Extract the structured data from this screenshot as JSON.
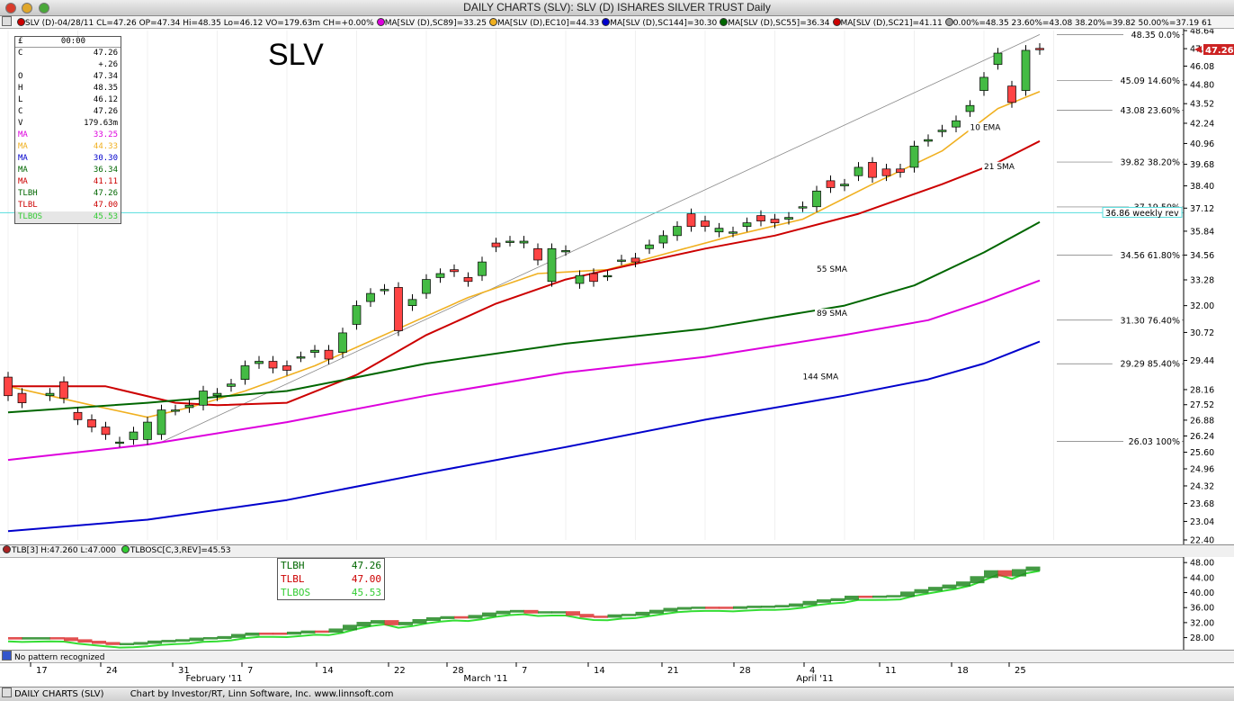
{
  "window": {
    "title": "DAILY CHARTS (SLV): SLV (D) ISHARES SILVER TRUST Daily"
  },
  "status_items": [
    {
      "text": "SLV (D)-04/28/11 CL=47.26 OP=47.34 Hi=48.35 Lo=46.12 VO=179.63m CH=+0.00%",
      "color": "#cc0000"
    },
    {
      "text": "MA[SLV (D),SC89]=33.25",
      "color": "#dd00dd"
    },
    {
      "text": "MA[SLV (D),EC10]=44.33",
      "color": "#f0b020"
    },
    {
      "text": "MA[SLV (D),SC144]=30.30",
      "color": "#0000cc"
    },
    {
      "text": "MA[SLV (D),SC55]=36.34",
      "color": "#006600"
    },
    {
      "text": "MA[SLV (D),SC21]=41.11",
      "color": "#cc0000"
    },
    {
      "text": "0.00%=48.35 23.60%=43.08 38.20%=39.82 50.00%=37.19 61",
      "color": "#999999"
    }
  ],
  "ticker_label": "SLV",
  "data_box": {
    "header_left": "£",
    "header_right": "00:00",
    "rows": [
      {
        "label": "C",
        "value": "47.26",
        "color": "#000000"
      },
      {
        "label": "",
        "value": "+.26",
        "color": "#000000"
      },
      {
        "label": "O",
        "value": "47.34",
        "color": "#000000"
      },
      {
        "label": "H",
        "value": "48.35",
        "color": "#000000"
      },
      {
        "label": "L",
        "value": "46.12",
        "color": "#000000"
      },
      {
        "label": "C",
        "value": "47.26",
        "color": "#000000"
      },
      {
        "label": "V",
        "value": "179.63m",
        "color": "#000000"
      },
      {
        "label": "MA",
        "value": "33.25",
        "color": "#dd00dd"
      },
      {
        "label": "MA",
        "value": "44.33",
        "color": "#f0b020"
      },
      {
        "label": "MA",
        "value": "30.30",
        "color": "#0000cc"
      },
      {
        "label": "MA",
        "value": "36.34",
        "color": "#006600"
      },
      {
        "label": "MA",
        "value": "41.11",
        "color": "#cc0000"
      },
      {
        "label": "TLBH",
        "value": "47.26",
        "color": "#006600"
      },
      {
        "label": "TLBL",
        "value": "47.00",
        "color": "#cc0000"
      },
      {
        "label": "TLBOS",
        "value": "45.53",
        "color": "#33cc33"
      }
    ]
  },
  "panel2": {
    "status_a": "TLB[3] H:47.260 L:47.000",
    "status_b": "TLBOSC[C,3,REV]=45.53",
    "box_rows": [
      {
        "label": "TLBH",
        "value": "47.26",
        "color": "#006600"
      },
      {
        "label": "TLBL",
        "value": "47.00",
        "color": "#cc0000"
      },
      {
        "label": "TLBOS",
        "value": "45.53",
        "color": "#33cc33"
      }
    ],
    "y_ticks": [
      "48.00",
      "44.00",
      "40.00",
      "36.00",
      "32.00",
      "28.00"
    ]
  },
  "pattern_text": "No pattern recognized",
  "bottom_left": "DAILY CHARTS (SLV)",
  "bottom_center": "Chart by Investor/RT, Linn Software, Inc. www.linnsoft.com",
  "chart_data": {
    "type": "candlestick",
    "title": "SLV",
    "y_axis": {
      "min": 22.4,
      "max": 48.64,
      "scale": "log",
      "ticks": [
        "48.64",
        "47.32",
        "46.08",
        "44.80",
        "43.52",
        "42.24",
        "40.96",
        "39.68",
        "38.40",
        "37.12",
        "35.84",
        "34.56",
        "33.28",
        "32.00",
        "30.72",
        "29.44",
        "28.16",
        "27.52",
        "26.88",
        "26.24",
        "25.60",
        "24.96",
        "24.32",
        "23.68",
        "23.04",
        "22.40"
      ]
    },
    "x_axis": {
      "date_labels": [
        "17",
        "24",
        "31",
        "February '11",
        "7",
        "14",
        "22",
        "28",
        "March '11",
        "7",
        "14",
        "21",
        "28",
        "April '11",
        "4",
        "11",
        "18",
        "25"
      ]
    },
    "last_price_marker": "47.26",
    "candles": [
      [
        0,
        "Jan-12",
        28.7,
        27.9
      ],
      [
        1,
        "Jan-13",
        28.0,
        27.6
      ],
      [
        3,
        "Jan-18",
        27.9,
        28.0
      ],
      [
        4,
        "Jan-19",
        28.5,
        27.8
      ],
      [
        5,
        "Jan-20",
        27.2,
        26.9
      ],
      [
        6,
        "Jan-21",
        26.9,
        26.6
      ],
      [
        7,
        "Jan-24",
        26.6,
        26.3
      ],
      [
        8,
        "Jan-25",
        26.0,
        26.0
      ],
      [
        9,
        "Jan-26",
        26.1,
        26.4
      ],
      [
        10,
        "Jan-27",
        26.1,
        26.8
      ],
      [
        11,
        "Jan-28",
        26.3,
        27.3
      ],
      [
        12,
        "Jan-31",
        27.3,
        27.3
      ],
      [
        13,
        "Feb-01",
        27.4,
        27.5
      ],
      [
        14,
        "Feb-02",
        27.5,
        28.1
      ],
      [
        15,
        "Feb-03",
        27.9,
        28.0
      ],
      [
        16,
        "Feb-04",
        28.3,
        28.4
      ],
      [
        17,
        "Feb-07",
        28.6,
        29.2
      ],
      [
        18,
        "Feb-08",
        29.3,
        29.4
      ],
      [
        19,
        "Feb-09",
        29.4,
        29.1
      ],
      [
        20,
        "Feb-10",
        29.2,
        29.0
      ],
      [
        21,
        "Feb-11",
        29.6,
        29.6
      ],
      [
        22,
        "Feb-14",
        29.8,
        29.9
      ],
      [
        23,
        "Feb-15",
        29.9,
        29.5
      ],
      [
        24,
        "Feb-16",
        29.8,
        30.7
      ],
      [
        25,
        "Feb-17",
        31.1,
        32.0
      ],
      [
        26,
        "Feb-18",
        32.2,
        32.6
      ],
      [
        27,
        "Feb-22",
        32.8,
        32.8
      ],
      [
        28,
        "Feb-23",
        32.9,
        30.8
      ],
      [
        29,
        "Feb-24",
        32.0,
        32.3
      ],
      [
        30,
        "Feb-25",
        32.6,
        33.3
      ],
      [
        31,
        "Feb-28",
        33.4,
        33.6
      ],
      [
        32,
        "Mar-01",
        33.8,
        33.7
      ],
      [
        33,
        "Mar-02",
        33.4,
        33.2
      ],
      [
        34,
        "Mar-03",
        33.5,
        34.2
      ],
      [
        35,
        "Mar-04",
        35.2,
        35.0
      ],
      [
        36,
        "Mar-07",
        35.3,
        35.3
      ],
      [
        37,
        "Mar-08",
        35.2,
        35.3
      ],
      [
        38,
        "Mar-09",
        34.9,
        34.3
      ],
      [
        39,
        "Mar-10",
        33.2,
        34.9
      ],
      [
        40,
        "Mar-11",
        34.8,
        34.8
      ],
      [
        41,
        "Mar-14",
        33.1,
        33.5
      ],
      [
        42,
        "Mar-15",
        33.6,
        33.2
      ],
      [
        43,
        "Mar-16",
        33.5,
        33.5
      ],
      [
        44,
        "Mar-17",
        34.3,
        34.3
      ],
      [
        45,
        "Mar-18",
        34.4,
        34.2
      ],
      [
        46,
        "Mar-21",
        34.9,
        35.1
      ],
      [
        47,
        "Mar-22",
        35.2,
        35.6
      ],
      [
        48,
        "Mar-23",
        35.6,
        36.1
      ],
      [
        49,
        "Mar-24",
        36.8,
        36.1
      ],
      [
        50,
        "Mar-25",
        36.4,
        36.1
      ],
      [
        51,
        "Mar-28",
        35.8,
        36.0
      ],
      [
        52,
        "Mar-29",
        35.8,
        35.8
      ],
      [
        53,
        "Mar-30",
        36.1,
        36.3
      ],
      [
        54,
        "Mar-31",
        36.7,
        36.4
      ],
      [
        55,
        "Apr-01",
        36.5,
        36.3
      ],
      [
        56,
        "Apr-04",
        36.5,
        36.6
      ],
      [
        57,
        "Apr-05",
        37.2,
        37.2
      ],
      [
        58,
        "Apr-06",
        37.2,
        38.1
      ],
      [
        59,
        "Apr-07",
        38.7,
        38.3
      ],
      [
        60,
        "Apr-08",
        38.4,
        38.5
      ],
      [
        61,
        "Apr-11",
        39.0,
        39.5
      ],
      [
        62,
        "Apr-12",
        39.8,
        38.9
      ],
      [
        63,
        "Apr-13",
        39.4,
        39.0
      ],
      [
        64,
        "Apr-14",
        39.4,
        39.2
      ],
      [
        65,
        "Apr-15",
        39.5,
        40.8
      ],
      [
        66,
        "Apr-18",
        41.1,
        41.2
      ],
      [
        67,
        "Apr-19",
        41.7,
        41.8
      ],
      [
        68,
        "Apr-20",
        42.0,
        42.4
      ],
      [
        69,
        "Apr-21",
        43.0,
        43.4
      ],
      [
        70,
        "Apr-22",
        44.4,
        45.3
      ],
      [
        71,
        "Apr-25",
        46.2,
        47.0
      ],
      [
        72,
        "Apr-26",
        44.7,
        43.6
      ],
      [
        73,
        "Apr-27",
        44.4,
        47.2
      ],
      [
        74,
        "Apr-28",
        47.34,
        47.26
      ]
    ],
    "series": [
      {
        "name": "10 EMA",
        "color": "#f0b020",
        "points": [
          [
            0,
            28.3
          ],
          [
            6,
            27.5
          ],
          [
            10,
            27.0
          ],
          [
            13,
            27.4
          ],
          [
            17,
            28.1
          ],
          [
            22,
            29.2
          ],
          [
            28,
            30.9
          ],
          [
            33,
            32.4
          ],
          [
            38,
            33.6
          ],
          [
            43,
            33.8
          ],
          [
            47,
            34.6
          ],
          [
            52,
            35.6
          ],
          [
            57,
            36.5
          ],
          [
            62,
            38.5
          ],
          [
            67,
            40.5
          ],
          [
            71,
            43.2
          ],
          [
            74,
            44.33
          ]
        ]
      },
      {
        "name": "21 SMA",
        "color": "#cc0000",
        "points": [
          [
            0,
            28.3
          ],
          [
            7,
            28.3
          ],
          [
            12,
            27.6
          ],
          [
            15,
            27.5
          ],
          [
            20,
            27.6
          ],
          [
            25,
            28.8
          ],
          [
            30,
            30.6
          ],
          [
            35,
            32.1
          ],
          [
            40,
            33.3
          ],
          [
            45,
            34.1
          ],
          [
            50,
            34.9
          ],
          [
            55,
            35.6
          ],
          [
            61,
            36.8
          ],
          [
            67,
            38.5
          ],
          [
            71,
            39.8
          ],
          [
            74,
            41.11
          ]
        ]
      },
      {
        "name": "55 SMA",
        "color": "#006600",
        "points": [
          [
            0,
            27.2
          ],
          [
            10,
            27.6
          ],
          [
            20,
            28.1
          ],
          [
            30,
            29.3
          ],
          [
            40,
            30.2
          ],
          [
            50,
            30.9
          ],
          [
            60,
            32.0
          ],
          [
            65,
            33.0
          ],
          [
            70,
            34.7
          ],
          [
            74,
            36.34
          ]
        ]
      },
      {
        "name": "89 SMA",
        "color": "#dd00dd",
        "points": [
          [
            0,
            25.3
          ],
          [
            10,
            25.9
          ],
          [
            20,
            26.8
          ],
          [
            30,
            27.9
          ],
          [
            40,
            28.9
          ],
          [
            50,
            29.6
          ],
          [
            60,
            30.6
          ],
          [
            66,
            31.3
          ],
          [
            70,
            32.2
          ],
          [
            74,
            33.25
          ]
        ]
      },
      {
        "name": "144 SMA",
        "color": "#0000cc",
        "points": [
          [
            0,
            22.7
          ],
          [
            10,
            23.1
          ],
          [
            20,
            23.8
          ],
          [
            30,
            24.8
          ],
          [
            40,
            25.8
          ],
          [
            50,
            26.9
          ],
          [
            60,
            27.9
          ],
          [
            66,
            28.6
          ],
          [
            70,
            29.3
          ],
          [
            74,
            30.3
          ]
        ]
      }
    ],
    "series_labels": [
      {
        "text": "10 EMA",
        "at": [
          69,
          41.8
        ]
      },
      {
        "text": "21 SMA",
        "at": [
          70,
          39.4
        ]
      },
      {
        "text": "55 SMA",
        "at": [
          58,
          33.7
        ]
      },
      {
        "text": "89 SMA",
        "at": [
          58,
          31.5
        ]
      },
      {
        "text": "144 SMA",
        "at": [
          57,
          28.6
        ]
      }
    ],
    "fib_levels": [
      {
        "label": "48.35 0.0%",
        "value": 48.35
      },
      {
        "label": "45.09 14.60%",
        "value": 45.09
      },
      {
        "label": "43.08 23.60%",
        "value": 43.08
      },
      {
        "label": "39.82 38.20%",
        "value": 39.82
      },
      {
        "label": "37.19 50%",
        "value": 37.19
      },
      {
        "label": "34.56 61.80%",
        "value": 34.56
      },
      {
        "label": "31.30 76.40%",
        "value": 31.3
      },
      {
        "label": "29.29 85.40%",
        "value": 29.29
      },
      {
        "label": "26.03 100%",
        "value": 26.03
      }
    ],
    "weekly_rev": {
      "label": "36.86 weekly rev",
      "value": 36.86
    }
  }
}
